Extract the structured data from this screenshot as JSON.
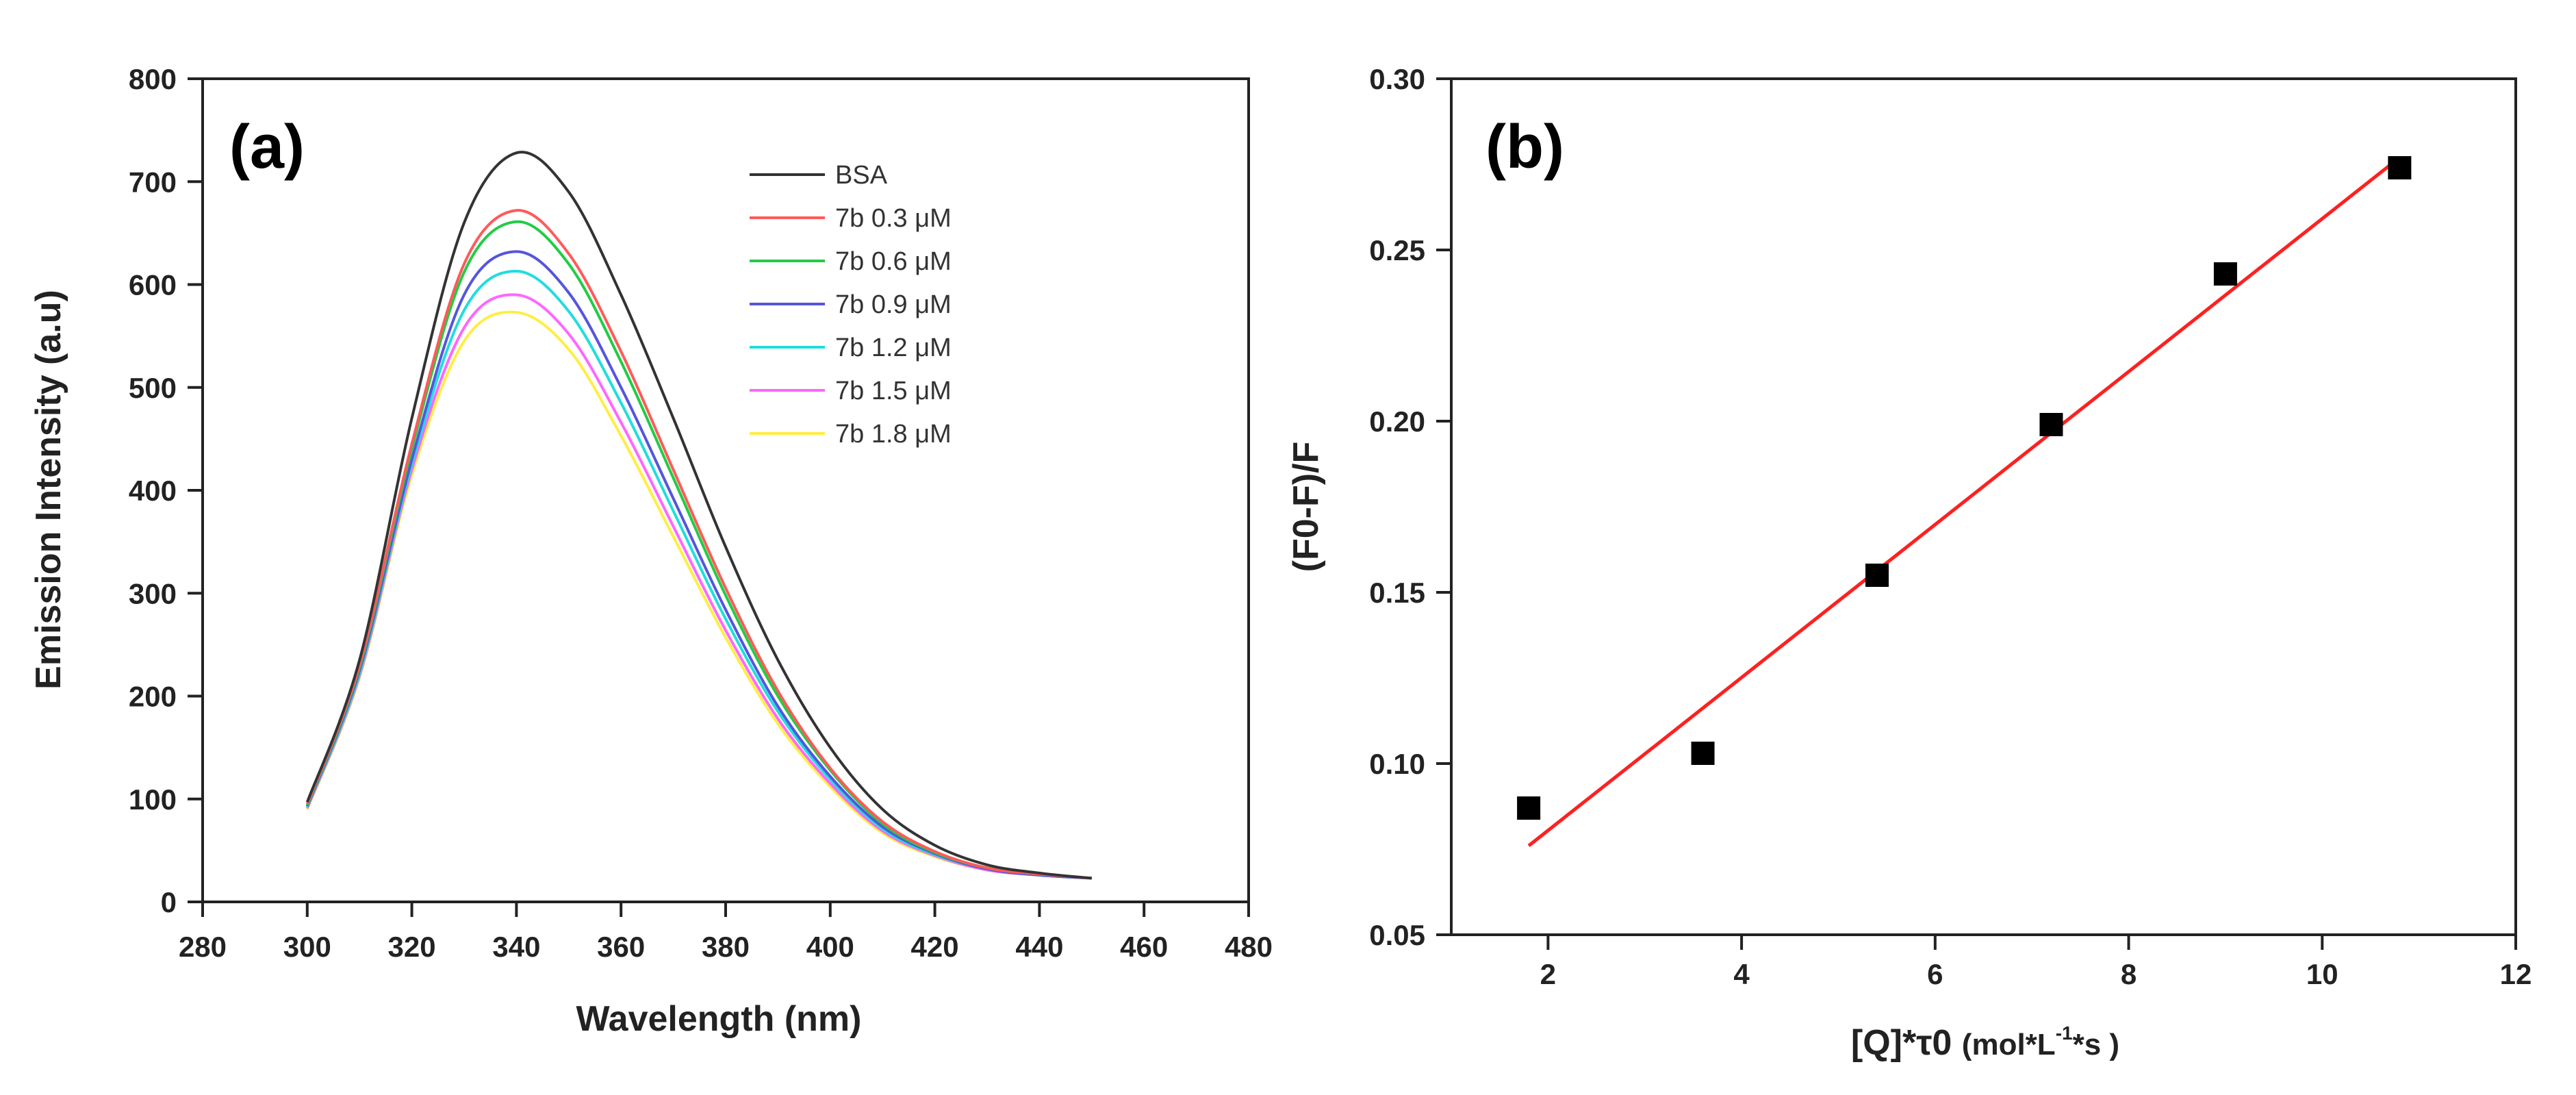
{
  "chart_data": [
    {
      "panel": "(a)",
      "type": "line",
      "xlabel": "Wavelength (nm)",
      "ylabel": "Emission Intensity (a.u)",
      "xlim": [
        280,
        480
      ],
      "ylim": [
        0,
        800
      ],
      "xticks": [
        280,
        300,
        320,
        340,
        360,
        380,
        400,
        420,
        440,
        460,
        480
      ],
      "yticks": [
        0,
        100,
        200,
        300,
        400,
        500,
        600,
        700,
        800
      ],
      "legend_position": "top-right",
      "x": [
        300,
        310,
        320,
        330,
        340,
        350,
        360,
        370,
        380,
        390,
        400,
        410,
        420,
        430,
        440,
        450
      ],
      "series": [
        {
          "name": "BSA",
          "color": "#333333",
          "values": [
            97,
            235,
            470,
            660,
            728,
            690,
            590,
            470,
            345,
            235,
            150,
            90,
            55,
            36,
            28,
            23
          ]
        },
        {
          "name": "7b 0.3 μM",
          "color": "#ff5a5a",
          "values": [
            95,
            230,
            445,
            620,
            672,
            630,
            535,
            420,
            305,
            205,
            130,
            78,
            49,
            33,
            27,
            23
          ]
        },
        {
          "name": "7b 0.6 μM",
          "color": "#22cc44",
          "values": [
            94,
            228,
            440,
            612,
            661,
            620,
            525,
            412,
            298,
            200,
            128,
            76,
            48,
            33,
            27,
            23
          ]
        },
        {
          "name": "7b 0.9 μM",
          "color": "#5555dd",
          "values": [
            93,
            225,
            430,
            590,
            632,
            592,
            500,
            392,
            284,
            190,
            122,
            73,
            47,
            32,
            26,
            23
          ]
        },
        {
          "name": "7b 1.2 μM",
          "color": "#22dddd",
          "values": [
            92,
            222,
            425,
            575,
            613,
            574,
            485,
            380,
            275,
            185,
            119,
            71,
            46,
            32,
            26,
            23
          ]
        },
        {
          "name": "7b 1.5 μM",
          "color": "#ff66ff",
          "values": [
            91,
            220,
            420,
            558,
            590,
            552,
            466,
            365,
            264,
            178,
            115,
            69,
            45,
            31,
            26,
            23
          ]
        },
        {
          "name": "7b 1.8 μM",
          "color": "#ffee44",
          "values": [
            90,
            218,
            415,
            545,
            573,
            537,
            453,
            355,
            257,
            173,
            112,
            67,
            44,
            31,
            26,
            23
          ]
        }
      ]
    },
    {
      "panel": "(b)",
      "type": "scatter",
      "xlabel": "[Q]*τ0 ",
      "xlabel_unit": "(mol*L",
      "xlabel_sup": "-1",
      "xlabel_unit_end": "*s )",
      "ylabel": "(F0-F)/F",
      "xlim": [
        1,
        12
      ],
      "ylim": [
        0.05,
        0.3
      ],
      "xticks": [
        2,
        4,
        6,
        8,
        10,
        12
      ],
      "yticks": [
        0.05,
        0.1,
        0.15,
        0.2,
        0.25,
        0.3
      ],
      "ytick_labels": [
        "0.05",
        "0.10",
        "0.15",
        "0.20",
        "0.25",
        "0.30"
      ],
      "points": {
        "x": [
          1.8,
          3.6,
          5.4,
          7.2,
          9.0,
          10.8
        ],
        "y": [
          0.087,
          0.103,
          0.155,
          0.199,
          0.243,
          0.274
        ],
        "color": "#000000"
      },
      "fit_line": {
        "x": [
          1.8,
          10.8
        ],
        "y": [
          0.076,
          0.277
        ],
        "color": "#ff2020"
      }
    }
  ]
}
